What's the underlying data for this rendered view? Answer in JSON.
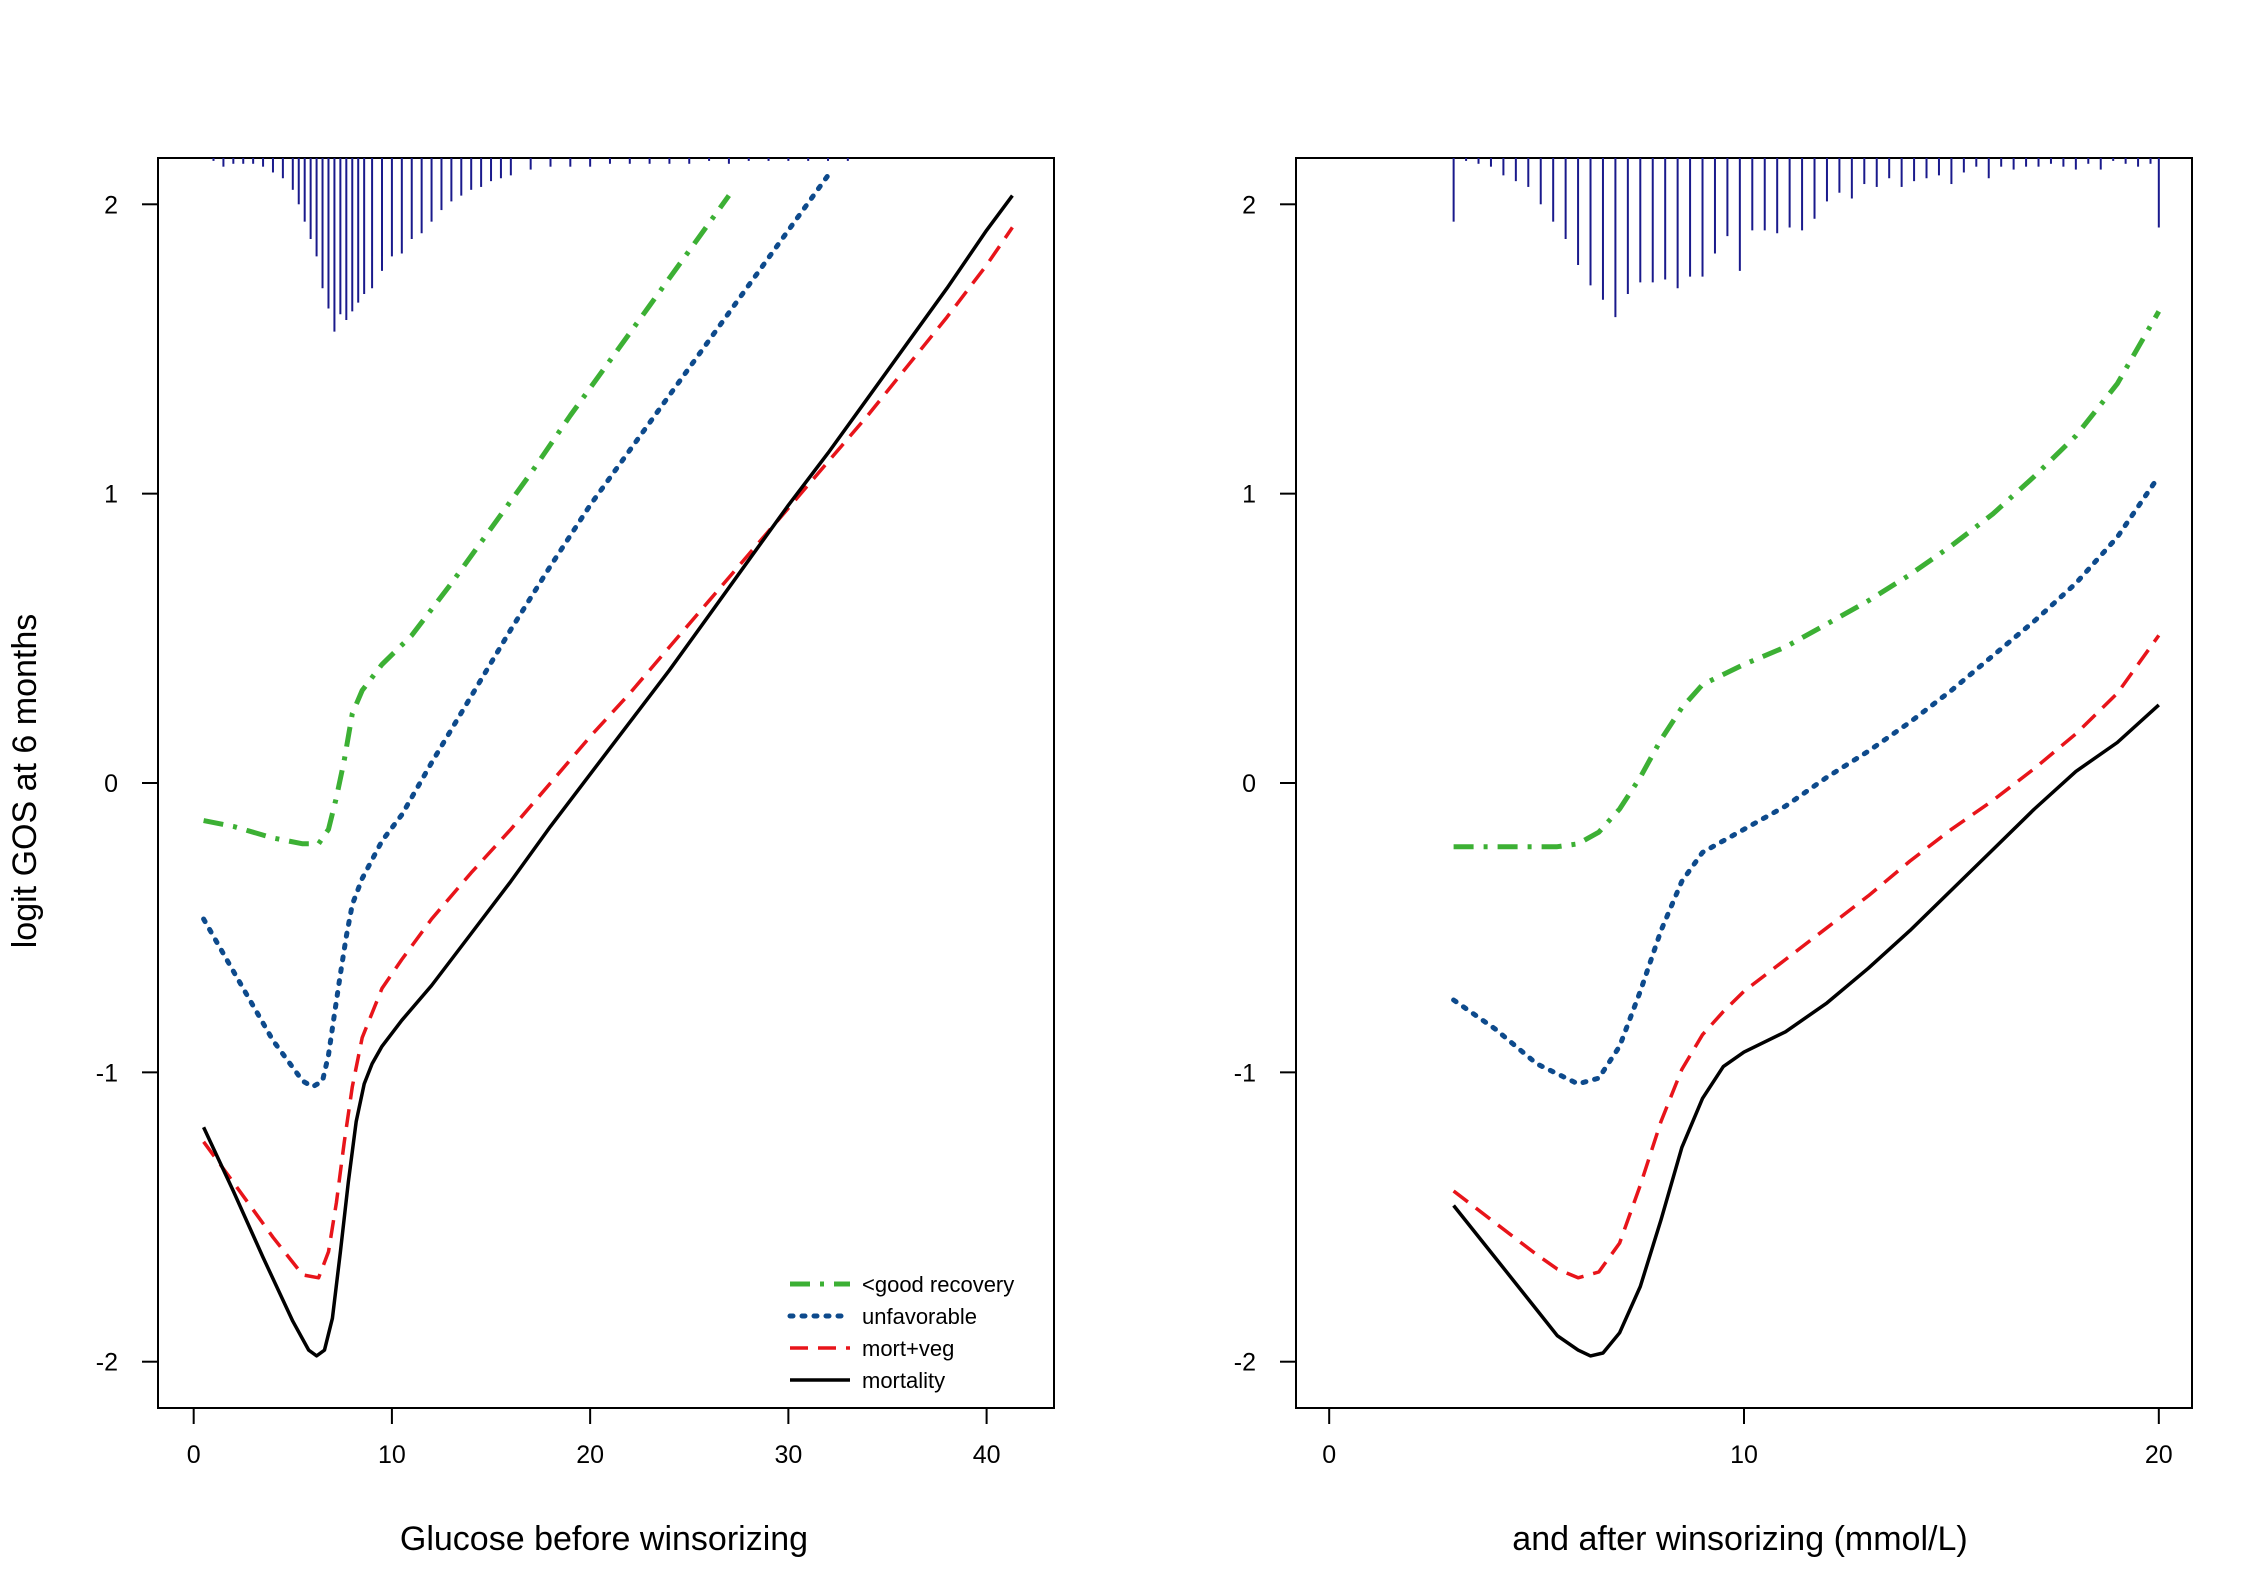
{
  "ylabel": "logit GOS at 6 months",
  "legend": {
    "placement": "bottom-right of left panel",
    "entries": [
      {
        "label": "<good recovery",
        "series": "good"
      },
      {
        "label": "unfavorable",
        "series": "unfav"
      },
      {
        "label": "mort+veg",
        "series": "mortveg"
      },
      {
        "label": "mortality",
        "series": "mort"
      }
    ]
  },
  "colors": {
    "good": "#3cb034",
    "unfav": "#0d4a8c",
    "mortveg": "#e8141a",
    "mort": "#000000",
    "rug": "#1a1a8c"
  },
  "chart_data": [
    {
      "type": "line",
      "xlabel": "Glucose before winsorizing",
      "ylabel": "logit GOS at 6 months",
      "xlim": [
        -1.8,
        43.4
      ],
      "ylim": [
        -2.16,
        2.16
      ],
      "xticks": [
        0,
        10,
        20,
        30,
        40
      ],
      "yticks": [
        -2,
        -1,
        0,
        1,
        2
      ],
      "rug": {
        "x": [
          1.0,
          1.5,
          2.0,
          2.5,
          3.0,
          3.5,
          4.0,
          4.5,
          5.0,
          5.3,
          5.6,
          5.9,
          6.2,
          6.5,
          6.8,
          7.1,
          7.4,
          7.7,
          8.0,
          8.3,
          8.6,
          9.0,
          9.5,
          10.0,
          10.5,
          11.0,
          11.5,
          12.0,
          12.5,
          13.0,
          13.5,
          14.0,
          14.5,
          15.0,
          15.5,
          16.0,
          17,
          18,
          19,
          20,
          21,
          22,
          23,
          24,
          25,
          26,
          27,
          28,
          29,
          30,
          31,
          32,
          33
        ],
        "len": [
          0.01,
          0.03,
          0.02,
          0.02,
          0.02,
          0.03,
          0.05,
          0.07,
          0.11,
          0.16,
          0.22,
          0.28,
          0.34,
          0.45,
          0.52,
          0.6,
          0.54,
          0.56,
          0.53,
          0.5,
          0.47,
          0.45,
          0.39,
          0.34,
          0.33,
          0.28,
          0.26,
          0.22,
          0.18,
          0.15,
          0.13,
          0.11,
          0.1,
          0.08,
          0.07,
          0.06,
          0.04,
          0.03,
          0.03,
          0.03,
          0.02,
          0.02,
          0.02,
          0.02,
          0.02,
          0.01,
          0.02,
          0.01,
          0.01,
          0.01,
          0.01,
          0.01,
          0.01
        ]
      },
      "series": [
        {
          "name": "<good recovery",
          "key": "good",
          "x": [
            0.5,
            2,
            4,
            5.5,
            6.3,
            6.8,
            7.2,
            7.6,
            8,
            8.5,
            9.5,
            11,
            13,
            15,
            17,
            19,
            21,
            23,
            25,
            27
          ],
          "y": [
            -0.13,
            -0.15,
            -0.19,
            -0.21,
            -0.21,
            -0.16,
            -0.05,
            0.08,
            0.24,
            0.32,
            0.41,
            0.51,
            0.69,
            0.88,
            1.07,
            1.27,
            1.46,
            1.65,
            1.84,
            2.03
          ]
        },
        {
          "name": "unfavorable",
          "key": "unfav",
          "x": [
            0.5,
            2,
            4,
            5.5,
            6,
            6.5,
            6.8,
            7.1,
            7.4,
            7.7,
            8,
            8.5,
            9.5,
            10.5,
            12,
            14,
            16,
            18,
            20,
            22,
            24,
            26,
            28,
            30,
            32
          ],
          "y": [
            -0.47,
            -0.65,
            -0.89,
            -1.03,
            -1.05,
            -1.03,
            -0.94,
            -0.8,
            -0.66,
            -0.53,
            -0.42,
            -0.33,
            -0.2,
            -0.11,
            0.07,
            0.3,
            0.53,
            0.75,
            0.96,
            1.15,
            1.34,
            1.53,
            1.72,
            1.91,
            2.1
          ]
        },
        {
          "name": "mort+veg",
          "key": "mortveg",
          "x": [
            0.5,
            2,
            4,
            5.5,
            6.3,
            6.8,
            7.2,
            7.6,
            8,
            8.5,
            9.5,
            10.5,
            12,
            14,
            16,
            18,
            20,
            22,
            24,
            26,
            28,
            30,
            32,
            34,
            36,
            38,
            40,
            41.3
          ],
          "y": [
            -1.24,
            -1.38,
            -1.57,
            -1.7,
            -1.71,
            -1.62,
            -1.45,
            -1.24,
            -1.05,
            -0.88,
            -0.71,
            -0.61,
            -0.47,
            -0.31,
            -0.16,
            0.0,
            0.16,
            0.31,
            0.47,
            0.63,
            0.79,
            0.95,
            1.11,
            1.27,
            1.44,
            1.61,
            1.79,
            1.92
          ]
        },
        {
          "name": "mortality",
          "key": "mort",
          "x": [
            0.5,
            2,
            3.5,
            5,
            5.8,
            6.2,
            6.6,
            7,
            7.4,
            7.8,
            8.2,
            8.6,
            9,
            9.5,
            10.5,
            12,
            14,
            16,
            18,
            20,
            22,
            24,
            26,
            28,
            30,
            32,
            34,
            36,
            38,
            40,
            41.3
          ],
          "y": [
            -1.19,
            -1.41,
            -1.64,
            -1.86,
            -1.96,
            -1.98,
            -1.96,
            -1.85,
            -1.62,
            -1.38,
            -1.17,
            -1.04,
            -0.97,
            -0.91,
            -0.82,
            -0.7,
            -0.52,
            -0.34,
            -0.15,
            0.03,
            0.21,
            0.39,
            0.58,
            0.77,
            0.96,
            1.14,
            1.33,
            1.52,
            1.71,
            1.91,
            2.03
          ]
        }
      ]
    },
    {
      "type": "line",
      "xlabel": "and after winsorizing (mmol/L)",
      "ylabel": "",
      "xlim": [
        -0.8,
        20.8
      ],
      "ylim": [
        -2.16,
        2.16
      ],
      "xticks": [
        0,
        10,
        20
      ],
      "yticks": [
        -2,
        -1,
        0,
        1,
        2
      ],
      "rug": {
        "x": [
          3.0,
          3.3,
          3.6,
          3.9,
          4.2,
          4.5,
          4.8,
          5.1,
          5.4,
          5.7,
          6.0,
          6.3,
          6.6,
          6.9,
          7.2,
          7.5,
          7.8,
          8.1,
          8.4,
          8.7,
          9.0,
          9.3,
          9.6,
          9.9,
          10.2,
          10.5,
          10.8,
          11.1,
          11.4,
          11.7,
          12.0,
          12.3,
          12.6,
          12.9,
          13.2,
          13.5,
          13.8,
          14.1,
          14.4,
          14.7,
          15.0,
          15.3,
          15.6,
          15.9,
          16.2,
          16.5,
          16.8,
          17.1,
          17.4,
          17.7,
          18.0,
          18.3,
          18.6,
          18.9,
          19.2,
          19.5,
          19.8,
          20.0
        ],
        "len": [
          0.22,
          0.01,
          0.02,
          0.03,
          0.06,
          0.08,
          0.1,
          0.16,
          0.22,
          0.28,
          0.37,
          0.44,
          0.49,
          0.55,
          0.47,
          0.43,
          0.43,
          0.42,
          0.45,
          0.41,
          0.41,
          0.33,
          0.27,
          0.39,
          0.25,
          0.25,
          0.26,
          0.24,
          0.25,
          0.21,
          0.15,
          0.12,
          0.14,
          0.09,
          0.1,
          0.07,
          0.1,
          0.08,
          0.07,
          0.06,
          0.09,
          0.05,
          0.03,
          0.07,
          0.03,
          0.04,
          0.03,
          0.03,
          0.02,
          0.03,
          0.04,
          0.02,
          0.04,
          0.01,
          0.02,
          0.03,
          0.02,
          0.24
        ]
      },
      "series": [
        {
          "name": "<good recovery",
          "key": "good",
          "x": [
            3,
            4,
            5,
            5.5,
            6,
            6.5,
            7,
            7.5,
            8,
            8.5,
            9,
            10,
            11,
            12,
            13,
            14,
            15,
            16,
            17,
            18,
            19,
            20
          ],
          "y": [
            -0.22,
            -0.22,
            -0.22,
            -0.22,
            -0.21,
            -0.17,
            -0.09,
            0.02,
            0.15,
            0.26,
            0.34,
            0.41,
            0.47,
            0.55,
            0.63,
            0.72,
            0.82,
            0.93,
            1.06,
            1.2,
            1.38,
            1.63
          ]
        },
        {
          "name": "unfavorable",
          "key": "unfav",
          "x": [
            3,
            4,
            5,
            6,
            6.5,
            7,
            7.5,
            8,
            8.5,
            9,
            10,
            11,
            12,
            13,
            14,
            15,
            16,
            17,
            18,
            19,
            20
          ],
          "y": [
            -0.75,
            -0.85,
            -0.97,
            -1.04,
            -1.02,
            -0.91,
            -0.72,
            -0.51,
            -0.34,
            -0.24,
            -0.16,
            -0.08,
            0.02,
            0.11,
            0.21,
            0.32,
            0.44,
            0.56,
            0.69,
            0.85,
            1.06
          ]
        },
        {
          "name": "mort+veg",
          "key": "mortveg",
          "x": [
            3,
            4,
            5,
            5.5,
            6,
            6.5,
            7,
            7.5,
            8,
            8.5,
            9,
            9.5,
            10,
            11,
            12,
            13,
            14,
            15,
            16,
            17,
            18,
            19,
            20
          ],
          "y": [
            -1.41,
            -1.52,
            -1.63,
            -1.68,
            -1.71,
            -1.69,
            -1.59,
            -1.39,
            -1.17,
            -0.99,
            -0.87,
            -0.79,
            -0.72,
            -0.61,
            -0.5,
            -0.39,
            -0.27,
            -0.16,
            -0.06,
            0.05,
            0.17,
            0.31,
            0.51
          ]
        },
        {
          "name": "mortality",
          "key": "mort",
          "x": [
            3,
            4,
            5,
            5.5,
            6,
            6.3,
            6.6,
            7,
            7.5,
            8,
            8.5,
            9,
            9.5,
            10,
            11,
            12,
            13,
            14,
            15,
            16,
            17,
            18,
            19,
            20
          ],
          "y": [
            -1.46,
            -1.64,
            -1.82,
            -1.91,
            -1.96,
            -1.98,
            -1.97,
            -1.9,
            -1.74,
            -1.51,
            -1.26,
            -1.09,
            -0.98,
            -0.93,
            -0.86,
            -0.76,
            -0.64,
            -0.51,
            -0.37,
            -0.23,
            -0.09,
            0.04,
            0.14,
            0.27
          ]
        }
      ]
    }
  ]
}
